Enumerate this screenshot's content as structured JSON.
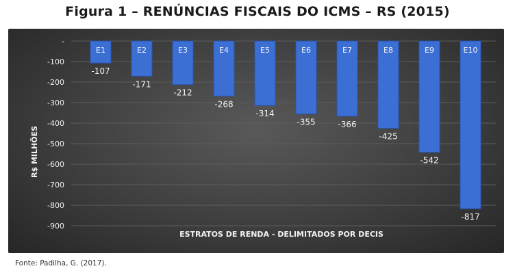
{
  "figure": {
    "title": "Figura 1 – RENÚNCIAS FISCAIS DO ICMS – RS (2015)",
    "source": "Fonte: Padilha, G. (2017)."
  },
  "chart_data": {
    "type": "bar",
    "title": "",
    "xlabel": "ESTRATOS DE RENDA - DELIMITADOS POR DECIS",
    "ylabel": "R$ MILHÕES",
    "categories": [
      "E1",
      "E2",
      "E3",
      "E4",
      "E5",
      "E6",
      "E7",
      "E8",
      "E9",
      "E10"
    ],
    "values": [
      -107,
      -171,
      -212,
      -268,
      -314,
      -355,
      -366,
      -425,
      -542,
      -817
    ],
    "data_labels": [
      "-107",
      "-171",
      "-212",
      "-268",
      "-314",
      "-355",
      "-366",
      "-425",
      "-542",
      "-817"
    ],
    "ylim": [
      -900,
      0
    ],
    "yticks": [
      0,
      -100,
      -200,
      -300,
      -400,
      -500,
      -600,
      -700,
      -800,
      -900
    ],
    "ytick_labels": [
      "-",
      "-100",
      "-200",
      "-300",
      "-400",
      "-500",
      "-600",
      "-700",
      "-800",
      "-900"
    ],
    "grid": true,
    "colors": {
      "bar": "#3b6fd4",
      "bar_edge": "#2a55b0",
      "background": "#3e3e3e",
      "gridline": "#5c5c5c",
      "text": "#f2f2f2"
    }
  }
}
